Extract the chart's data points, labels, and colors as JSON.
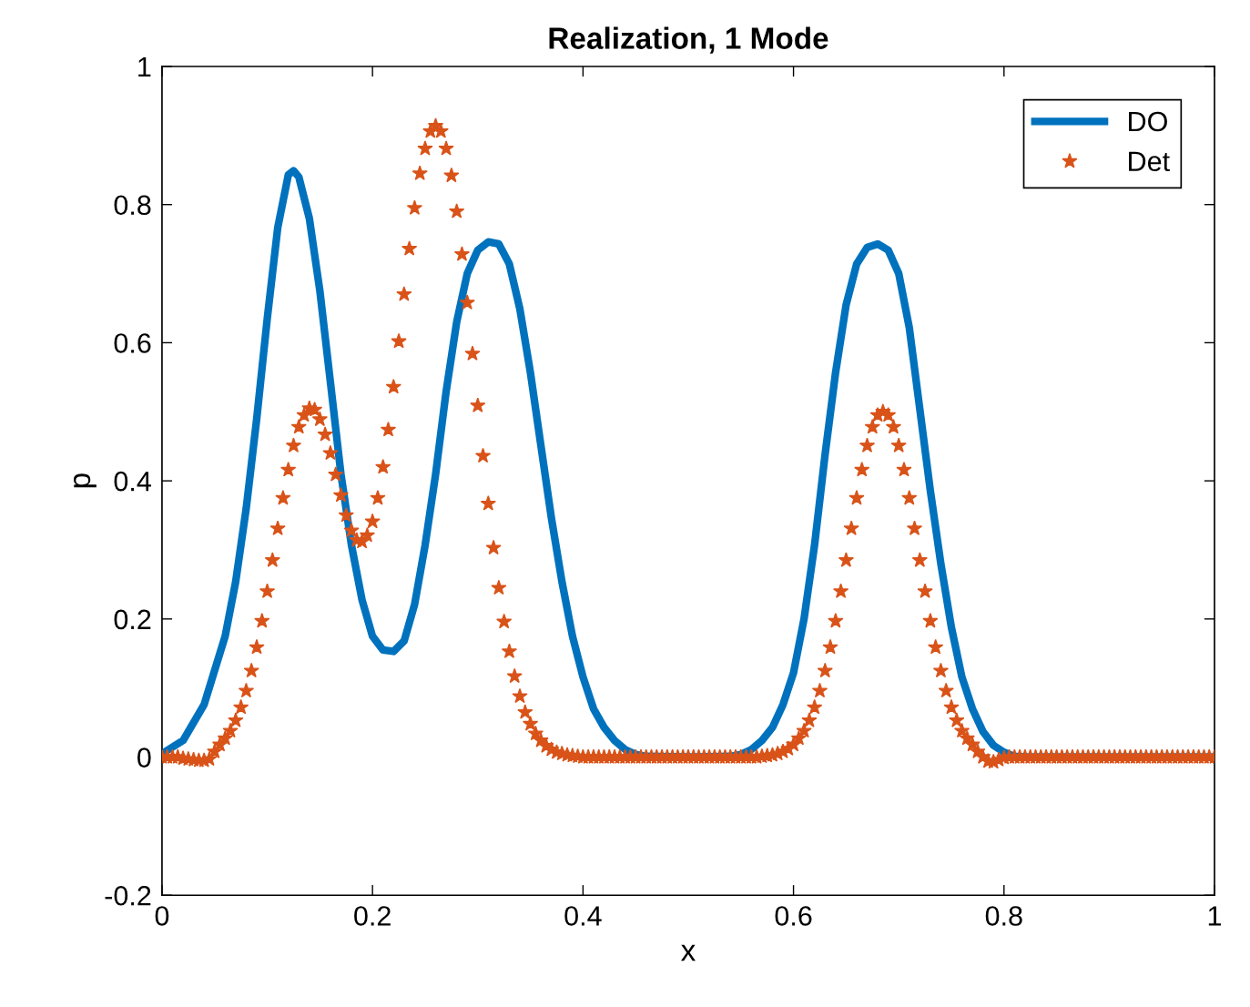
{
  "chart_data": {
    "type": "line",
    "title": "Realization, 1 Mode",
    "xlabel": "x",
    "ylabel": "p",
    "xlim": [
      0,
      1
    ],
    "ylim": [
      -0.2,
      1
    ],
    "xticks": [
      0,
      0.2,
      0.4,
      0.6,
      0.8,
      1
    ],
    "yticks": [
      -0.2,
      0,
      0.2,
      0.4,
      0.6,
      0.8,
      1
    ],
    "grid": false,
    "legend": "top right",
    "series": [
      {
        "name": "DO",
        "color": "#0072bd",
        "marker": "none",
        "line_style": "solid",
        "x": [
          0,
          0.02,
          0.04,
          0.06,
          0.07,
          0.08,
          0.09,
          0.1,
          0.11,
          0.12,
          0.125,
          0.13,
          0.14,
          0.15,
          0.16,
          0.17,
          0.18,
          0.19,
          0.2,
          0.21,
          0.22,
          0.23,
          0.24,
          0.25,
          0.26,
          0.27,
          0.28,
          0.29,
          0.3,
          0.31,
          0.32,
          0.33,
          0.34,
          0.35,
          0.36,
          0.37,
          0.38,
          0.39,
          0.4,
          0.41,
          0.42,
          0.43,
          0.44,
          0.45,
          0.46,
          0.5,
          0.54,
          0.55,
          0.56,
          0.57,
          0.58,
          0.59,
          0.6,
          0.61,
          0.62,
          0.63,
          0.64,
          0.65,
          0.66,
          0.67,
          0.68,
          0.69,
          0.7,
          0.71,
          0.72,
          0.73,
          0.74,
          0.75,
          0.76,
          0.77,
          0.78,
          0.79,
          0.8,
          0.81,
          0.82,
          0.9,
          1
        ],
        "values": [
          0.005,
          0.024,
          0.076,
          0.175,
          0.254,
          0.36,
          0.49,
          0.635,
          0.767,
          0.843,
          0.849,
          0.84,
          0.78,
          0.675,
          0.543,
          0.41,
          0.307,
          0.228,
          0.175,
          0.155,
          0.153,
          0.168,
          0.221,
          0.307,
          0.41,
          0.53,
          0.63,
          0.7,
          0.734,
          0.746,
          0.743,
          0.714,
          0.649,
          0.557,
          0.451,
          0.346,
          0.254,
          0.175,
          0.116,
          0.07,
          0.043,
          0.024,
          0.011,
          0.004,
          0.001,
          0,
          0.001,
          0.004,
          0.011,
          0.024,
          0.043,
          0.076,
          0.122,
          0.2,
          0.307,
          0.438,
          0.557,
          0.655,
          0.714,
          0.738,
          0.743,
          0.734,
          0.7,
          0.622,
          0.504,
          0.386,
          0.28,
          0.188,
          0.116,
          0.07,
          0.037,
          0.017,
          0.007,
          0.001,
          0,
          0,
          0
        ]
      },
      {
        "name": "Det",
        "type": "scatter",
        "color": "#d95319",
        "marker": "star",
        "x": [
          0,
          0.005,
          0.01,
          0.015,
          0.02,
          0.025,
          0.03,
          0.035,
          0.04,
          0.045,
          0.05,
          0.055,
          0.06,
          0.065,
          0.07,
          0.075,
          0.08,
          0.085,
          0.09,
          0.095,
          0.1,
          0.105,
          0.11,
          0.115,
          0.12,
          0.125,
          0.13,
          0.135,
          0.14,
          0.145,
          0.15,
          0.155,
          0.16,
          0.165,
          0.17,
          0.175,
          0.18,
          0.185,
          0.19,
          0.195,
          0.2,
          0.205,
          0.21,
          0.215,
          0.22,
          0.225,
          0.23,
          0.235,
          0.24,
          0.245,
          0.25,
          0.255,
          0.26,
          0.265,
          0.27,
          0.275,
          0.28,
          0.285,
          0.29,
          0.295,
          0.3,
          0.305,
          0.31,
          0.315,
          0.32,
          0.325,
          0.33,
          0.335,
          0.34,
          0.345,
          0.35,
          0.355,
          0.36,
          0.365,
          0.37,
          0.375,
          0.38,
          0.385,
          0.39,
          0.395,
          0.4,
          0.405,
          0.41,
          0.415,
          0.42,
          0.425,
          0.43,
          0.435,
          0.44,
          0.445,
          0.45,
          0.455,
          0.46,
          0.465,
          0.47,
          0.475,
          0.48,
          0.485,
          0.49,
          0.495,
          0.5,
          0.505,
          0.51,
          0.515,
          0.52,
          0.525,
          0.53,
          0.535,
          0.54,
          0.545,
          0.55,
          0.555,
          0.56,
          0.565,
          0.57,
          0.575,
          0.58,
          0.585,
          0.59,
          0.595,
          0.6,
          0.605,
          0.61,
          0.615,
          0.62,
          0.625,
          0.63,
          0.635,
          0.64,
          0.645,
          0.65,
          0.655,
          0.66,
          0.665,
          0.67,
          0.675,
          0.68,
          0.685,
          0.69,
          0.695,
          0.7,
          0.705,
          0.71,
          0.715,
          0.72,
          0.725,
          0.73,
          0.735,
          0.74,
          0.745,
          0.75,
          0.755,
          0.76,
          0.765,
          0.77,
          0.775,
          0.78,
          0.785,
          0.79,
          0.795,
          0.8,
          0.805,
          0.81,
          0.815,
          0.82,
          0.825,
          0.83,
          0.835,
          0.84,
          0.845,
          0.85,
          0.855,
          0.86,
          0.865,
          0.87,
          0.875,
          0.88,
          0.885,
          0.89,
          0.895,
          0.9,
          0.905,
          0.91,
          0.915,
          0.92,
          0.925,
          0.93,
          0.935,
          0.94,
          0.945,
          0.95,
          0.955,
          0.96,
          0.965,
          0.97,
          0.975,
          0.98,
          0.985,
          0.99,
          0.995,
          1
        ],
        "values": [
          0,
          0,
          0,
          0,
          -0.002,
          -0.003,
          -0.004,
          -0.005,
          -0.005,
          -0.003,
          0.008,
          0.018,
          0.027,
          0.038,
          0.053,
          0.072,
          0.096,
          0.125,
          0.159,
          0.197,
          0.24,
          0.285,
          0.331,
          0.375,
          0.416,
          0.451,
          0.478,
          0.495,
          0.505,
          0.503,
          0.489,
          0.467,
          0.44,
          0.409,
          0.379,
          0.35,
          0.328,
          0.314,
          0.312,
          0.321,
          0.341,
          0.375,
          0.42,
          0.474,
          0.536,
          0.602,
          0.67,
          0.736,
          0.795,
          0.845,
          0.881,
          0.906,
          0.914,
          0.906,
          0.881,
          0.842,
          0.79,
          0.728,
          0.658,
          0.584,
          0.509,
          0.436,
          0.367,
          0.303,
          0.245,
          0.196,
          0.153,
          0.117,
          0.088,
          0.065,
          0.048,
          0.034,
          0.024,
          0.016,
          0.011,
          0.007,
          0.005,
          0.003,
          0.002,
          0.001,
          0,
          0,
          0,
          0,
          0,
          0,
          0,
          0,
          0,
          0,
          0,
          0,
          0,
          0,
          0,
          0,
          0,
          0,
          0,
          0,
          0,
          0,
          0,
          0,
          0,
          0,
          0,
          0,
          0,
          0,
          0,
          0,
          0,
          0,
          0.001,
          0.002,
          0.003,
          0.005,
          0.008,
          0.012,
          0.018,
          0.027,
          0.038,
          0.053,
          0.072,
          0.096,
          0.125,
          0.159,
          0.197,
          0.24,
          0.285,
          0.331,
          0.375,
          0.416,
          0.451,
          0.478,
          0.495,
          0.5,
          0.495,
          0.478,
          0.451,
          0.416,
          0.375,
          0.331,
          0.285,
          0.24,
          0.197,
          0.159,
          0.125,
          0.096,
          0.072,
          0.053,
          0.038,
          0.027,
          0.018,
          0.008,
          0,
          -0.006,
          -0.007,
          -0.004,
          -0.001,
          0,
          0,
          0,
          0,
          0,
          0,
          0,
          0,
          0,
          0,
          0,
          0,
          0,
          0,
          0,
          0,
          0,
          0,
          0,
          0,
          0,
          0,
          0,
          0,
          0,
          0,
          0,
          0,
          0,
          0,
          0,
          0,
          0,
          0,
          0,
          0,
          0,
          0,
          0,
          0
        ]
      }
    ]
  }
}
